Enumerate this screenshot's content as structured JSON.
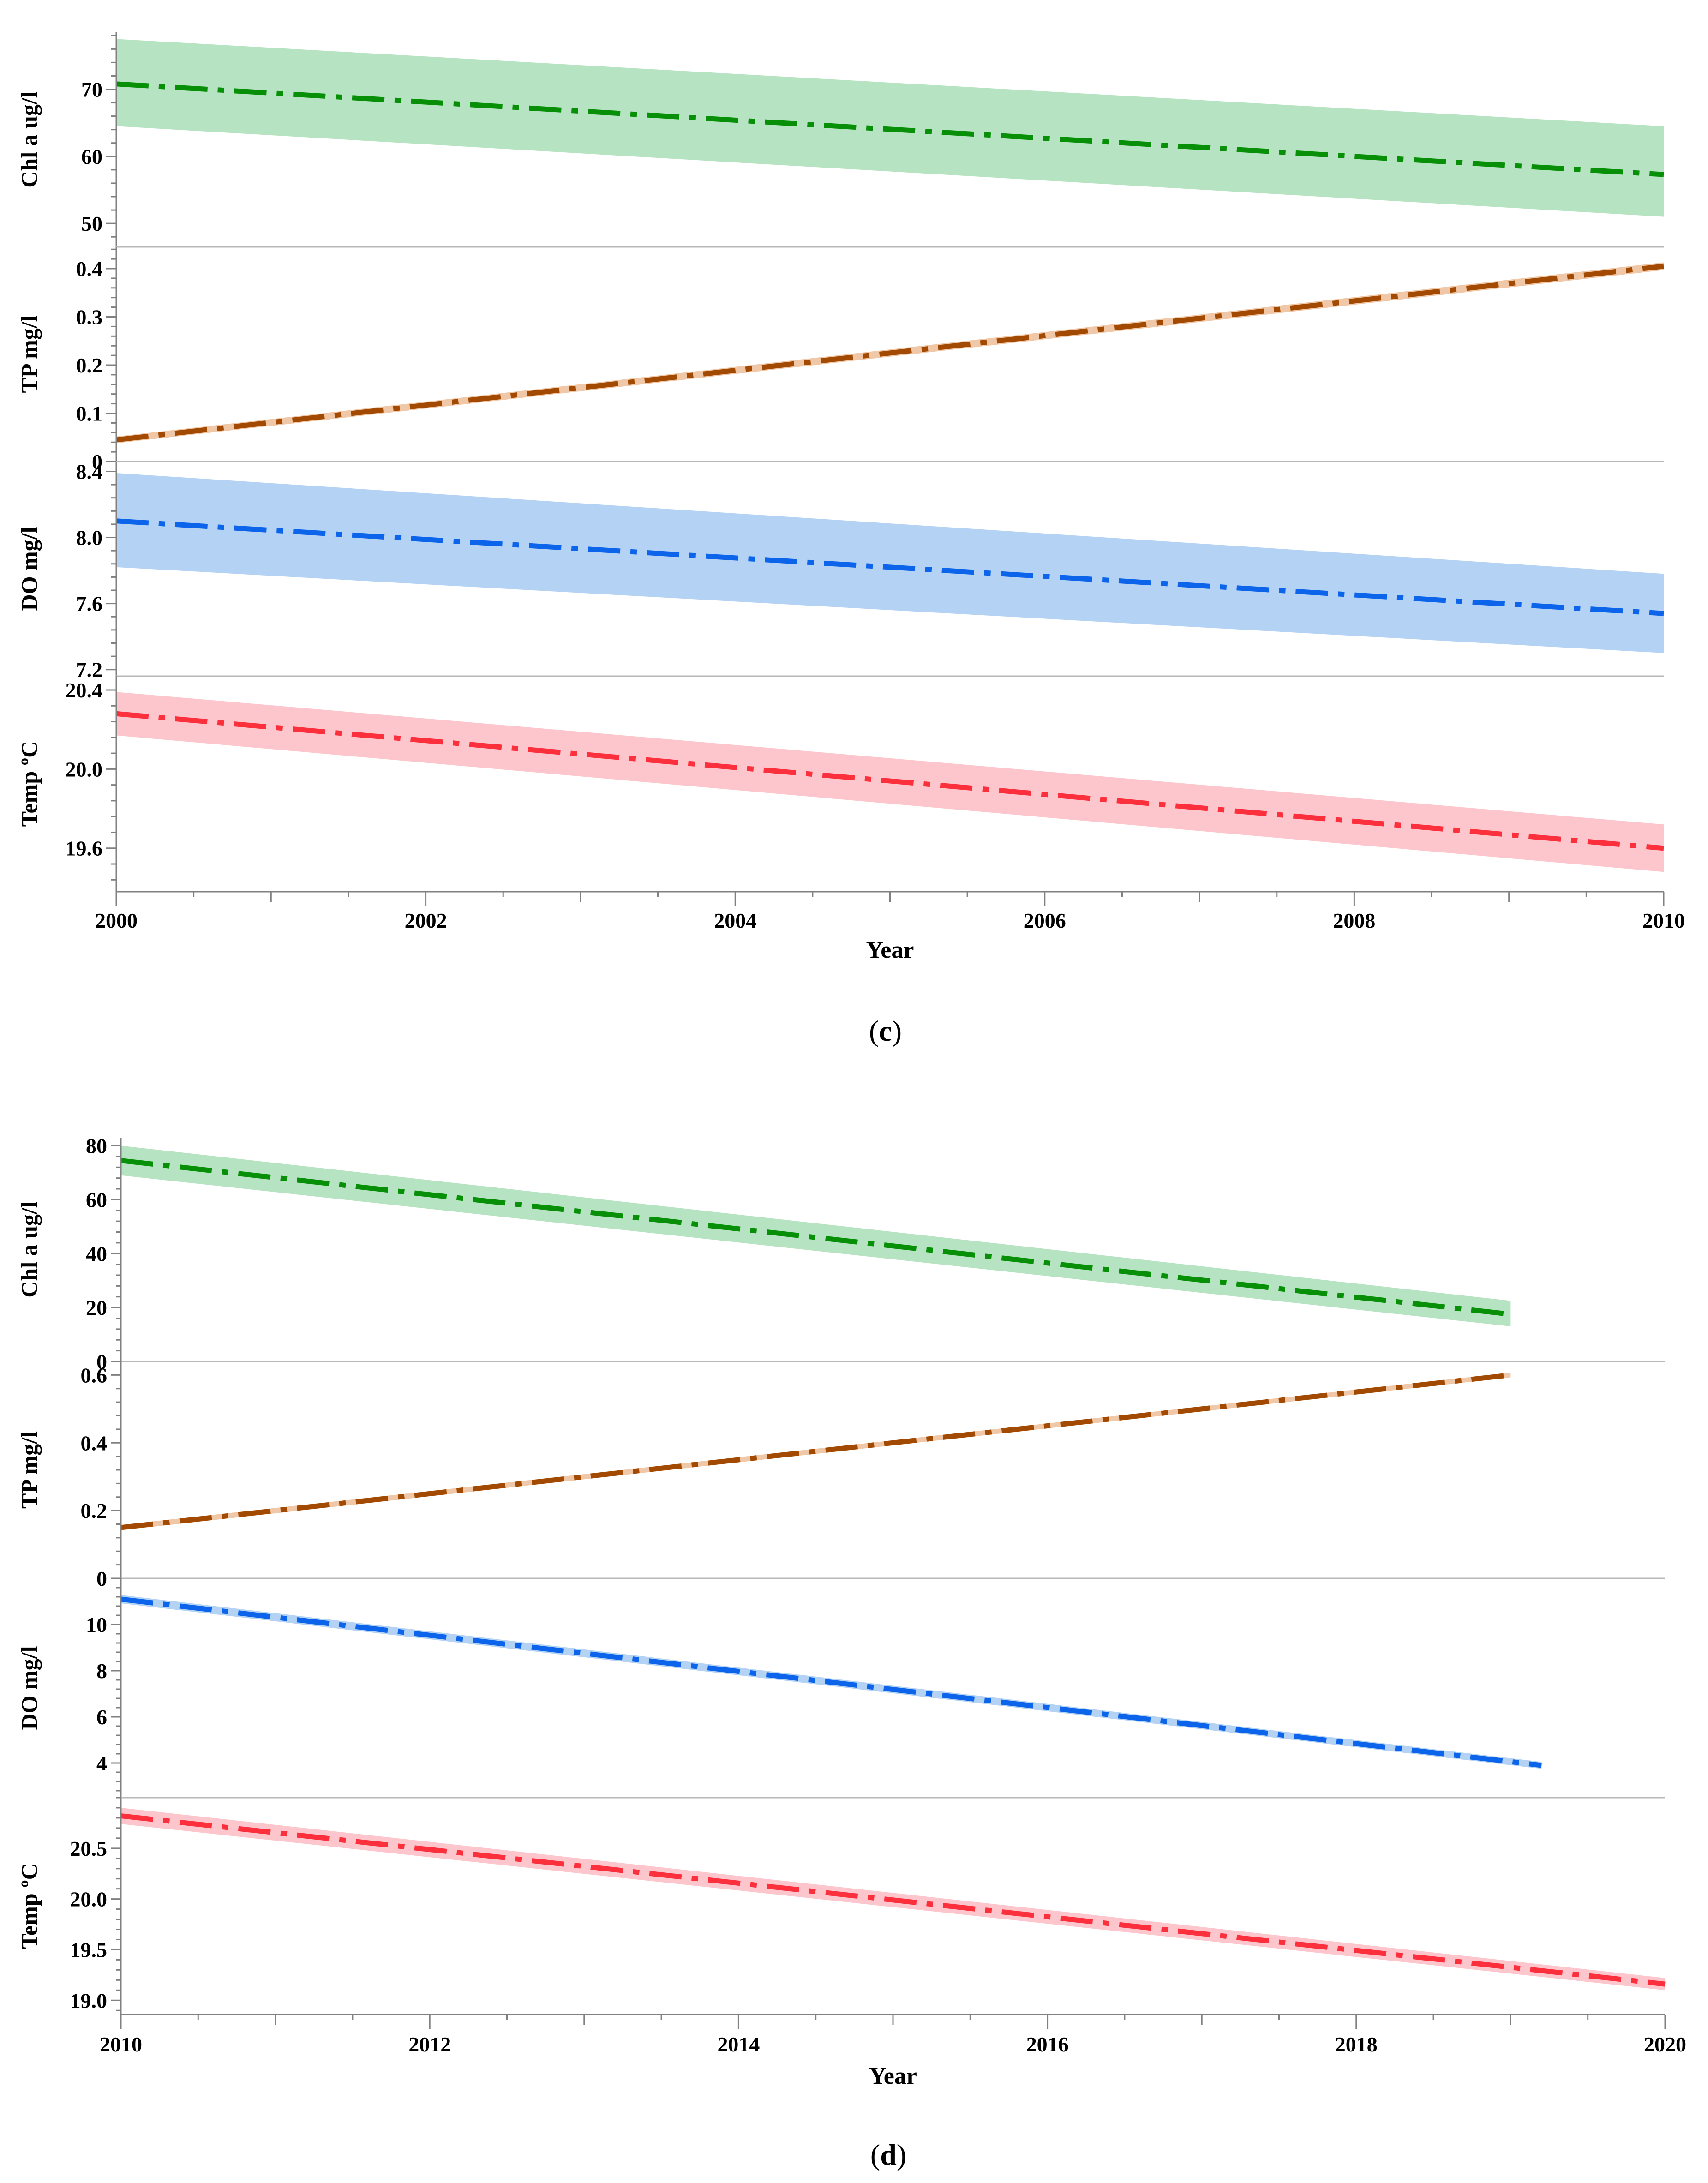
{
  "chart_data": [
    {
      "type": "line",
      "caption": "c",
      "xlabel": "Year",
      "xlim": [
        2000,
        2010
      ],
      "xticks": [
        2000,
        2002,
        2004,
        2006,
        2008,
        2010
      ],
      "xtick_labels": [
        "2000",
        "2002",
        "2004",
        "2006",
        "2008",
        "2010"
      ],
      "line_style": "dash-dot with shaded confidence band",
      "panels": [
        {
          "ylabel": "Chl a ug/l",
          "ylim": [
            46.5,
            78.5
          ],
          "yticks": [
            50,
            60,
            70
          ],
          "ytick_labels": [
            "50",
            "60",
            "70"
          ],
          "color": "#079007",
          "band_color": "#b6e3c1",
          "x": [
            2000,
            2010
          ],
          "y": [
            70.8,
            57.3
          ],
          "band_upper": [
            77.5,
            64.5
          ],
          "band_lower": [
            64.5,
            51.0
          ]
        },
        {
          "ylabel": "TP mg/l",
          "ylim": [
            0,
            0.445
          ],
          "yticks": [
            0,
            0.1,
            0.2,
            0.3,
            0.4
          ],
          "ytick_labels": [
            "0",
            "0.1",
            "0.2",
            "0.3",
            "0.4"
          ],
          "color": "#a24a02",
          "band_color": "#f0c8a8",
          "x": [
            2000,
            2010
          ],
          "y": [
            0.045,
            0.405
          ],
          "band_upper": [
            0.052,
            0.413
          ],
          "band_lower": [
            0.038,
            0.397
          ]
        },
        {
          "ylabel": "DO mg/l",
          "ylim": [
            7.16,
            8.46
          ],
          "yticks": [
            7.2,
            7.6,
            8.0,
            8.4
          ],
          "ytick_labels": [
            "7.2",
            "7.6",
            "8.0",
            "8.4"
          ],
          "color": "#0c64ea",
          "band_color": "#b4d2f3",
          "x": [
            2000,
            2010
          ],
          "y": [
            8.1,
            7.54
          ],
          "band_upper": [
            8.39,
            7.78
          ],
          "band_lower": [
            7.82,
            7.3
          ]
        },
        {
          "ylabel": "Temp ºC",
          "ylim": [
            19.38,
            20.47
          ],
          "yticks": [
            19.6,
            20.0,
            20.4
          ],
          "ytick_labels": [
            "19.6",
            "20.0",
            "20.4"
          ],
          "color": "#fc2f3d",
          "band_color": "#fdc6cd",
          "x": [
            2000,
            2010
          ],
          "y": [
            20.28,
            19.6
          ],
          "band_upper": [
            20.39,
            19.72
          ],
          "band_lower": [
            20.17,
            19.48
          ]
        }
      ]
    },
    {
      "type": "line",
      "caption": "d",
      "xlabel": "Year",
      "xlim": [
        2010,
        2020
      ],
      "xticks": [
        2010,
        2012,
        2014,
        2016,
        2018,
        2020
      ],
      "xtick_labels": [
        "2010",
        "2012",
        "2014",
        "2016",
        "2018",
        "2020"
      ],
      "line_style": "dash-dot with shaded confidence band",
      "panels": [
        {
          "ylabel": "Chl a ug/l",
          "ylim": [
            0,
            83
          ],
          "yticks": [
            0,
            20,
            40,
            60,
            80
          ],
          "ytick_labels": [
            "0",
            "20",
            "40",
            "60",
            "80"
          ],
          "color": "#079007",
          "band_color": "#b6e3c1",
          "x": [
            2010,
            2019
          ],
          "y": [
            74.5,
            17.5
          ],
          "band_upper": [
            80.0,
            22.5
          ],
          "band_lower": [
            69.0,
            13.0
          ]
        },
        {
          "ylabel": "TP mg/l",
          "ylim": [
            0,
            0.64
          ],
          "yticks": [
            0,
            0.2,
            0.4,
            0.6
          ],
          "ytick_labels": [
            "0",
            "0.2",
            "0.4",
            "0.6"
          ],
          "color": "#a24a02",
          "band_color": "#f0c8a8",
          "x": [
            2010,
            2019
          ],
          "y": [
            0.15,
            0.6
          ],
          "band_upper": [
            0.158,
            0.607
          ],
          "band_lower": [
            0.142,
            0.593
          ]
        },
        {
          "ylabel": "DO mg/l",
          "ylim": [
            2.5,
            12.0
          ],
          "yticks": [
            4,
            6,
            8,
            10
          ],
          "ytick_labels": [
            "4",
            "6",
            "8",
            "10"
          ],
          "color": "#0c64ea",
          "band_color": "#b4d2f3",
          "x": [
            2010,
            2019.2
          ],
          "y": [
            11.1,
            3.9
          ],
          "band_upper": [
            11.28,
            4.05
          ],
          "band_lower": [
            10.92,
            3.75
          ]
        },
        {
          "ylabel": "Temp ºC",
          "ylim": [
            18.86,
            21.0
          ],
          "yticks": [
            19.0,
            19.5,
            20.0,
            20.5
          ],
          "ytick_labels": [
            "19.0",
            "19.5",
            "20.0",
            "20.5"
          ],
          "color": "#fc2f3d",
          "band_color": "#fdc6cd",
          "x": [
            2010,
            2020
          ],
          "y": [
            20.82,
            19.16
          ],
          "band_upper": [
            20.9,
            19.22
          ],
          "band_lower": [
            20.74,
            19.1
          ]
        }
      ]
    }
  ]
}
